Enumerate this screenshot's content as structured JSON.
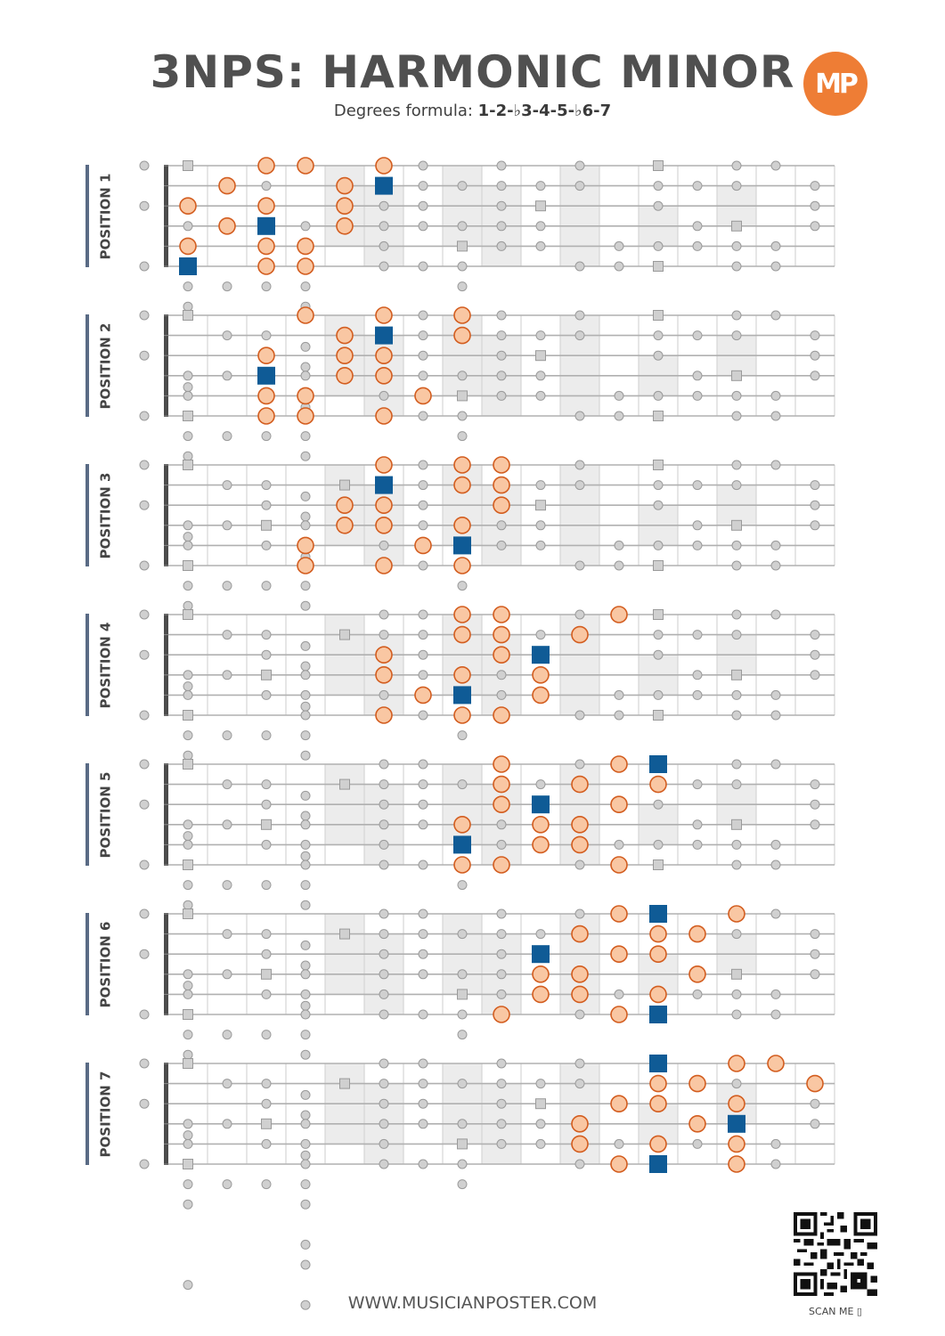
{
  "header": {
    "title": "3NPS: HARMONIC MINOR",
    "subtitle_prefix": "Degrees formula: ",
    "formula": "1-2-♭3-4-5-♭6-7",
    "logo_text": "MP"
  },
  "colors": {
    "note_fill": "#f9c7a3",
    "note_stroke": "#d35d1f",
    "root": "#0f5b96",
    "marker": "#d0d0d0",
    "shade": "#ececec",
    "line": "#b0b0b0",
    "nut": "#4c4c4c",
    "accent": "#ee7d35"
  },
  "fretboard": {
    "frets": 17,
    "strings": 6,
    "shaded_frets": [
      [
        5,
        0,
        4
      ],
      [
        6,
        1,
        5
      ],
      [
        8,
        0,
        4
      ],
      [
        9,
        1,
        5
      ],
      [
        11,
        0,
        5
      ],
      [
        13,
        2,
        4
      ],
      [
        15,
        1,
        3
      ]
    ]
  },
  "positions": [
    {
      "label": "POSITION 1",
      "notes": [
        [
          3,
          0
        ],
        [
          4,
          0
        ],
        [
          6,
          0
        ],
        [
          2,
          1
        ],
        [
          5,
          1
        ],
        [
          1,
          2
        ],
        [
          3,
          2
        ],
        [
          5,
          2
        ],
        [
          2,
          3
        ],
        [
          5,
          3
        ],
        [
          1,
          4
        ],
        [
          3,
          4
        ],
        [
          4,
          4
        ],
        [
          3,
          5
        ],
        [
          4,
          5
        ]
      ],
      "roots": [
        [
          6,
          1
        ],
        [
          3,
          3
        ],
        [
          1,
          5
        ]
      ]
    },
    {
      "label": "POSITION 2",
      "notes": [
        [
          4,
          0
        ],
        [
          6,
          0
        ],
        [
          8,
          0
        ],
        [
          5,
          1
        ],
        [
          8,
          1
        ],
        [
          3,
          2
        ],
        [
          5,
          2
        ],
        [
          6,
          2
        ],
        [
          5,
          3
        ],
        [
          6,
          3
        ],
        [
          3,
          4
        ],
        [
          4,
          4
        ],
        [
          7,
          4
        ],
        [
          3,
          5
        ],
        [
          4,
          5
        ],
        [
          6,
          5
        ]
      ],
      "roots": [
        [
          6,
          1
        ],
        [
          3,
          3
        ]
      ]
    },
    {
      "label": "POSITION 3",
      "notes": [
        [
          6,
          0
        ],
        [
          8,
          0
        ],
        [
          9,
          0
        ],
        [
          8,
          1
        ],
        [
          9,
          1
        ],
        [
          5,
          2
        ],
        [
          6,
          2
        ],
        [
          9,
          2
        ],
        [
          5,
          3
        ],
        [
          6,
          3
        ],
        [
          8,
          3
        ],
        [
          4,
          4
        ],
        [
          7,
          4
        ],
        [
          4,
          5
        ],
        [
          6,
          5
        ],
        [
          8,
          5
        ]
      ],
      "roots": [
        [
          6,
          1
        ],
        [
          8,
          4
        ]
      ]
    },
    {
      "label": "POSITION 4",
      "notes": [
        [
          8,
          0
        ],
        [
          9,
          0
        ],
        [
          12,
          0
        ],
        [
          8,
          1
        ],
        [
          9,
          1
        ],
        [
          11,
          1
        ],
        [
          6,
          2
        ],
        [
          9,
          2
        ],
        [
          6,
          3
        ],
        [
          8,
          3
        ],
        [
          10,
          3
        ],
        [
          7,
          4
        ],
        [
          10,
          4
        ],
        [
          6,
          5
        ],
        [
          8,
          5
        ],
        [
          9,
          5
        ]
      ],
      "roots": [
        [
          10,
          2
        ],
        [
          8,
          4
        ]
      ]
    },
    {
      "label": "POSITION 5",
      "notes": [
        [
          9,
          0
        ],
        [
          12,
          0
        ],
        [
          9,
          1
        ],
        [
          11,
          1
        ],
        [
          13,
          1
        ],
        [
          9,
          2
        ],
        [
          12,
          2
        ],
        [
          8,
          3
        ],
        [
          10,
          3
        ],
        [
          11,
          3
        ],
        [
          10,
          4
        ],
        [
          11,
          4
        ],
        [
          8,
          5
        ],
        [
          9,
          5
        ],
        [
          12,
          5
        ]
      ],
      "roots": [
        [
          13,
          0
        ],
        [
          10,
          2
        ],
        [
          8,
          4
        ]
      ]
    },
    {
      "label": "POSITION 6",
      "notes": [
        [
          12,
          0
        ],
        [
          15,
          0
        ],
        [
          11,
          1
        ],
        [
          13,
          1
        ],
        [
          14,
          1
        ],
        [
          12,
          2
        ],
        [
          13,
          2
        ],
        [
          10,
          3
        ],
        [
          11,
          3
        ],
        [
          14,
          3
        ],
        [
          10,
          4
        ],
        [
          11,
          4
        ],
        [
          13,
          4
        ],
        [
          9,
          5
        ],
        [
          12,
          5
        ]
      ],
      "roots": [
        [
          13,
          0
        ],
        [
          10,
          2
        ],
        [
          13,
          5
        ]
      ]
    },
    {
      "label": "POSITION 7",
      "notes": [
        [
          15,
          0
        ],
        [
          16,
          0
        ],
        [
          13,
          1
        ],
        [
          14,
          1
        ],
        [
          17,
          1
        ],
        [
          12,
          2
        ],
        [
          13,
          2
        ],
        [
          15,
          2
        ],
        [
          11,
          3
        ],
        [
          14,
          3
        ],
        [
          11,
          4
        ],
        [
          13,
          4
        ],
        [
          15,
          4
        ],
        [
          12,
          5
        ],
        [
          15,
          5
        ]
      ],
      "roots": [
        [
          13,
          0
        ],
        [
          15,
          3
        ],
        [
          13,
          5
        ]
      ]
    }
  ],
  "footer": {
    "website": "WWW.MUSICIANPOSTER.COM",
    "scan_label": "SCAN ME ▯"
  }
}
